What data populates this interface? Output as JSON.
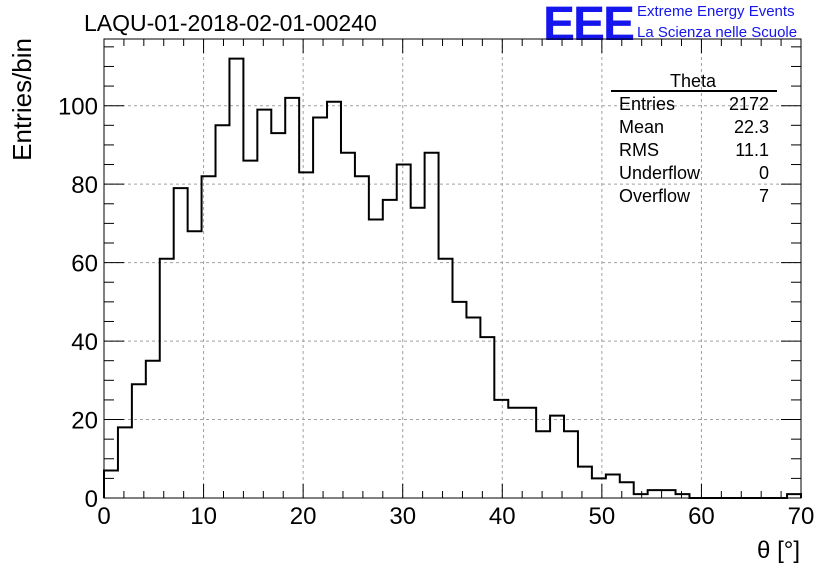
{
  "header": {
    "run_title": "LAQU-01-2018-02-01-00240",
    "logo_text": "EEE",
    "logo_line1": "Extreme Energy Events",
    "logo_line2": "La Scienza nelle Scuole",
    "logo_color": "#1515ee"
  },
  "stats_box": {
    "title": "Theta",
    "rows": [
      {
        "label": "Entries",
        "value": "2172"
      },
      {
        "label": "Mean",
        "value": "22.3"
      },
      {
        "label": "RMS",
        "value": "11.1"
      },
      {
        "label": "Underflow",
        "value": "0"
      },
      {
        "label": "Overflow",
        "value": "7"
      }
    ]
  },
  "chart_data": {
    "type": "histogram",
    "title": "LAQU-01-2018-02-01-00240",
    "xlabel": "θ [°]",
    "ylabel": "Entries/bin",
    "xlim": [
      0,
      70
    ],
    "ylim": [
      0,
      117
    ],
    "bin_width": 1.4,
    "x_ticks": [
      0,
      10,
      20,
      30,
      40,
      50,
      60,
      70
    ],
    "y_ticks": [
      0,
      20,
      40,
      60,
      80,
      100
    ],
    "grid": true,
    "bin_edges": [
      0,
      1.4,
      2.8,
      4.2,
      5.6,
      7.0,
      8.4,
      9.8,
      11.2,
      12.6,
      14.0,
      15.4,
      16.8,
      18.2,
      19.6,
      21.0,
      22.4,
      23.8,
      25.2,
      26.6,
      28.0,
      29.4,
      30.8,
      32.2,
      33.6,
      35.0,
      36.4,
      37.8,
      39.2,
      40.6,
      42.0,
      43.4,
      44.8,
      46.2,
      47.6,
      49.0,
      50.4,
      51.8,
      53.2,
      54.6,
      56.0,
      57.4,
      58.8,
      60.2,
      61.6,
      63.0,
      64.4,
      65.8,
      67.2,
      68.6,
      70.0
    ],
    "counts": [
      7,
      18,
      29,
      35,
      61,
      79,
      68,
      82,
      95,
      112,
      86,
      99,
      93,
      102,
      83,
      97,
      101,
      88,
      82,
      71,
      76,
      85,
      74,
      88,
      61,
      50,
      46,
      41,
      25,
      23,
      23,
      17,
      21,
      17,
      8,
      5,
      6,
      4,
      1,
      2,
      2,
      1,
      0,
      0,
      0,
      0,
      0,
      0,
      0,
      1
    ]
  }
}
